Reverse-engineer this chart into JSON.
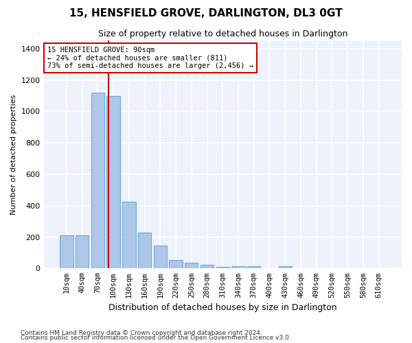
{
  "title": "15, HENSFIELD GROVE, DARLINGTON, DL3 0GT",
  "subtitle": "Size of property relative to detached houses in Darlington",
  "xlabel": "Distribution of detached houses by size in Darlington",
  "ylabel": "Number of detached properties",
  "categories": [
    "10sqm",
    "40sqm",
    "70sqm",
    "100sqm",
    "130sqm",
    "160sqm",
    "190sqm",
    "220sqm",
    "250sqm",
    "280sqm",
    "310sqm",
    "340sqm",
    "370sqm",
    "400sqm",
    "430sqm",
    "460sqm",
    "490sqm",
    "520sqm",
    "550sqm",
    "580sqm",
    "610sqm"
  ],
  "values": [
    210,
    210,
    1120,
    1100,
    425,
    230,
    145,
    55,
    38,
    25,
    12,
    15,
    15,
    0,
    15,
    0,
    0,
    0,
    0,
    0,
    0
  ],
  "bar_color": "#aec6e8",
  "bar_edge_color": "#6fa8d8",
  "background_color": "#eef3fb",
  "grid_color": "#ffffff",
  "red_line_x": 2.67,
  "annotation_text": "15 HENSFIELD GROVE: 90sqm\n← 24% of detached houses are smaller (811)\n73% of semi-detached houses are larger (2,456) →",
  "annotation_box_color": "#ffffff",
  "annotation_border_color": "#cc0000",
  "footer_line1": "Contains HM Land Registry data © Crown copyright and database right 2024.",
  "footer_line2": "Contains public sector information licensed under the Open Government Licence v3.0.",
  "ylim": [
    0,
    1450
  ],
  "yticks": [
    0,
    200,
    400,
    600,
    800,
    1000,
    1200,
    1400
  ]
}
